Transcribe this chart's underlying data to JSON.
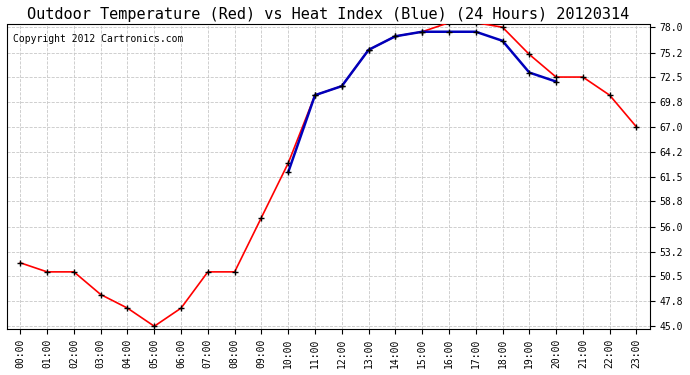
{
  "title": "Outdoor Temperature (Red) vs Heat Index (Blue) (24 Hours) 20120314",
  "copyright_text": "Copyright 2012 Cartronics.com",
  "x_labels": [
    "00:00",
    "01:00",
    "02:00",
    "03:00",
    "04:00",
    "05:00",
    "06:00",
    "07:00",
    "08:00",
    "09:00",
    "10:00",
    "11:00",
    "12:00",
    "13:00",
    "14:00",
    "15:00",
    "16:00",
    "17:00",
    "18:00",
    "19:00",
    "20:00",
    "21:00",
    "22:00",
    "23:00"
  ],
  "temp_red": [
    52.0,
    51.0,
    51.0,
    48.5,
    47.0,
    45.0,
    47.0,
    51.0,
    51.0,
    57.0,
    63.0,
    70.5,
    71.5,
    75.5,
    77.0,
    77.5,
    78.5,
    78.5,
    78.0,
    75.0,
    72.5,
    72.5,
    70.5,
    67.0
  ],
  "heat_blue": [
    null,
    null,
    null,
    null,
    null,
    null,
    null,
    null,
    null,
    null,
    62.0,
    70.5,
    71.5,
    75.5,
    77.0,
    77.5,
    77.5,
    77.5,
    76.5,
    73.0,
    72.0,
    null,
    null,
    null
  ],
  "ylim_min": 45.0,
  "ylim_max": 78.0,
  "yticks": [
    45.0,
    47.8,
    50.5,
    53.2,
    56.0,
    58.8,
    61.5,
    64.2,
    67.0,
    69.8,
    72.5,
    75.2,
    78.0
  ],
  "background_color": "#ffffff",
  "plot_bg_color": "#ffffff",
  "grid_color": "#c8c8c8",
  "red_color": "#ff0000",
  "blue_color": "#0000bb",
  "marker_color": "#000000",
  "title_fontsize": 11,
  "copyright_fontsize": 7,
  "tick_fontsize": 7,
  "fig_width": 6.9,
  "fig_height": 3.75,
  "dpi": 100
}
